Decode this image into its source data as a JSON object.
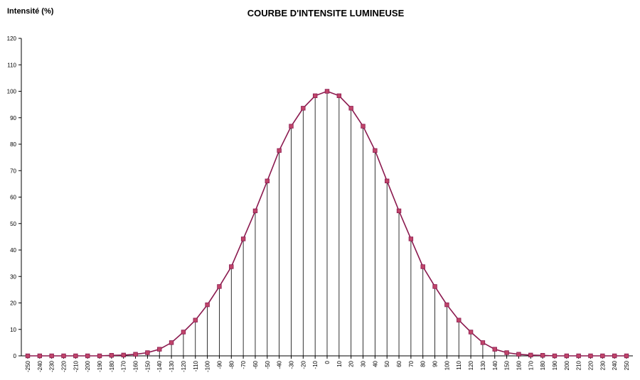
{
  "chart_data": {
    "type": "line",
    "title": "COURBE D'INTENSITE LUMINEUSE",
    "ylabel": "Intensité (%)",
    "xlabel": "",
    "ylim": [
      0,
      120
    ],
    "yticks": [
      "0",
      "10",
      "20",
      "30",
      "40",
      "50",
      "60",
      "70",
      "80",
      "90",
      "100",
      "110",
      "120"
    ],
    "xticks": [
      "-250",
      "-240",
      "-230",
      "-220",
      "-210",
      "-200",
      "-190",
      "-180",
      "-170",
      "-160",
      "-150",
      "-140",
      "-130",
      "-120",
      "-110",
      "-100",
      "-90",
      "-80",
      "-70",
      "-60",
      "-50",
      "-40",
      "-30",
      "-20",
      "-10",
      "0",
      "10",
      "20",
      "30",
      "40",
      "50",
      "60",
      "70",
      "80",
      "90",
      "100",
      "110",
      "120",
      "130",
      "140",
      "150",
      "160",
      "170",
      "180",
      "190",
      "200",
      "210",
      "220",
      "230",
      "240",
      "250"
    ],
    "grid": false,
    "drop_lines": true,
    "series": [
      {
        "color": "#8b1a4f",
        "marker_color": "#c0456a",
        "x": [
          -250,
          -240,
          -230,
          -220,
          -210,
          -200,
          -190,
          -180,
          -170,
          -160,
          -150,
          -140,
          -130,
          -120,
          -110,
          -100,
          -90,
          -80,
          -70,
          -60,
          -50,
          -40,
          -30,
          -20,
          -10,
          0,
          10,
          20,
          30,
          40,
          50,
          60,
          70,
          80,
          90,
          100,
          110,
          120,
          130,
          140,
          150,
          160,
          170,
          180,
          190,
          200,
          210,
          220,
          230,
          240,
          250
        ],
        "values": [
          0,
          0,
          0,
          0,
          0,
          0,
          0,
          0.2,
          0.3,
          0.6,
          1.2,
          2.5,
          5,
          9,
          13.5,
          19.3,
          26.2,
          33.7,
          44.2,
          54.8,
          66.1,
          77.6,
          86.8,
          93.6,
          98.3,
          100,
          98.3,
          93.6,
          86.8,
          77.6,
          66.1,
          54.8,
          44.2,
          33.7,
          26.2,
          19.3,
          13.5,
          9,
          5,
          2.5,
          1.2,
          0.6,
          0.3,
          0.2,
          0,
          0,
          0,
          0,
          0,
          0,
          0
        ]
      }
    ]
  }
}
